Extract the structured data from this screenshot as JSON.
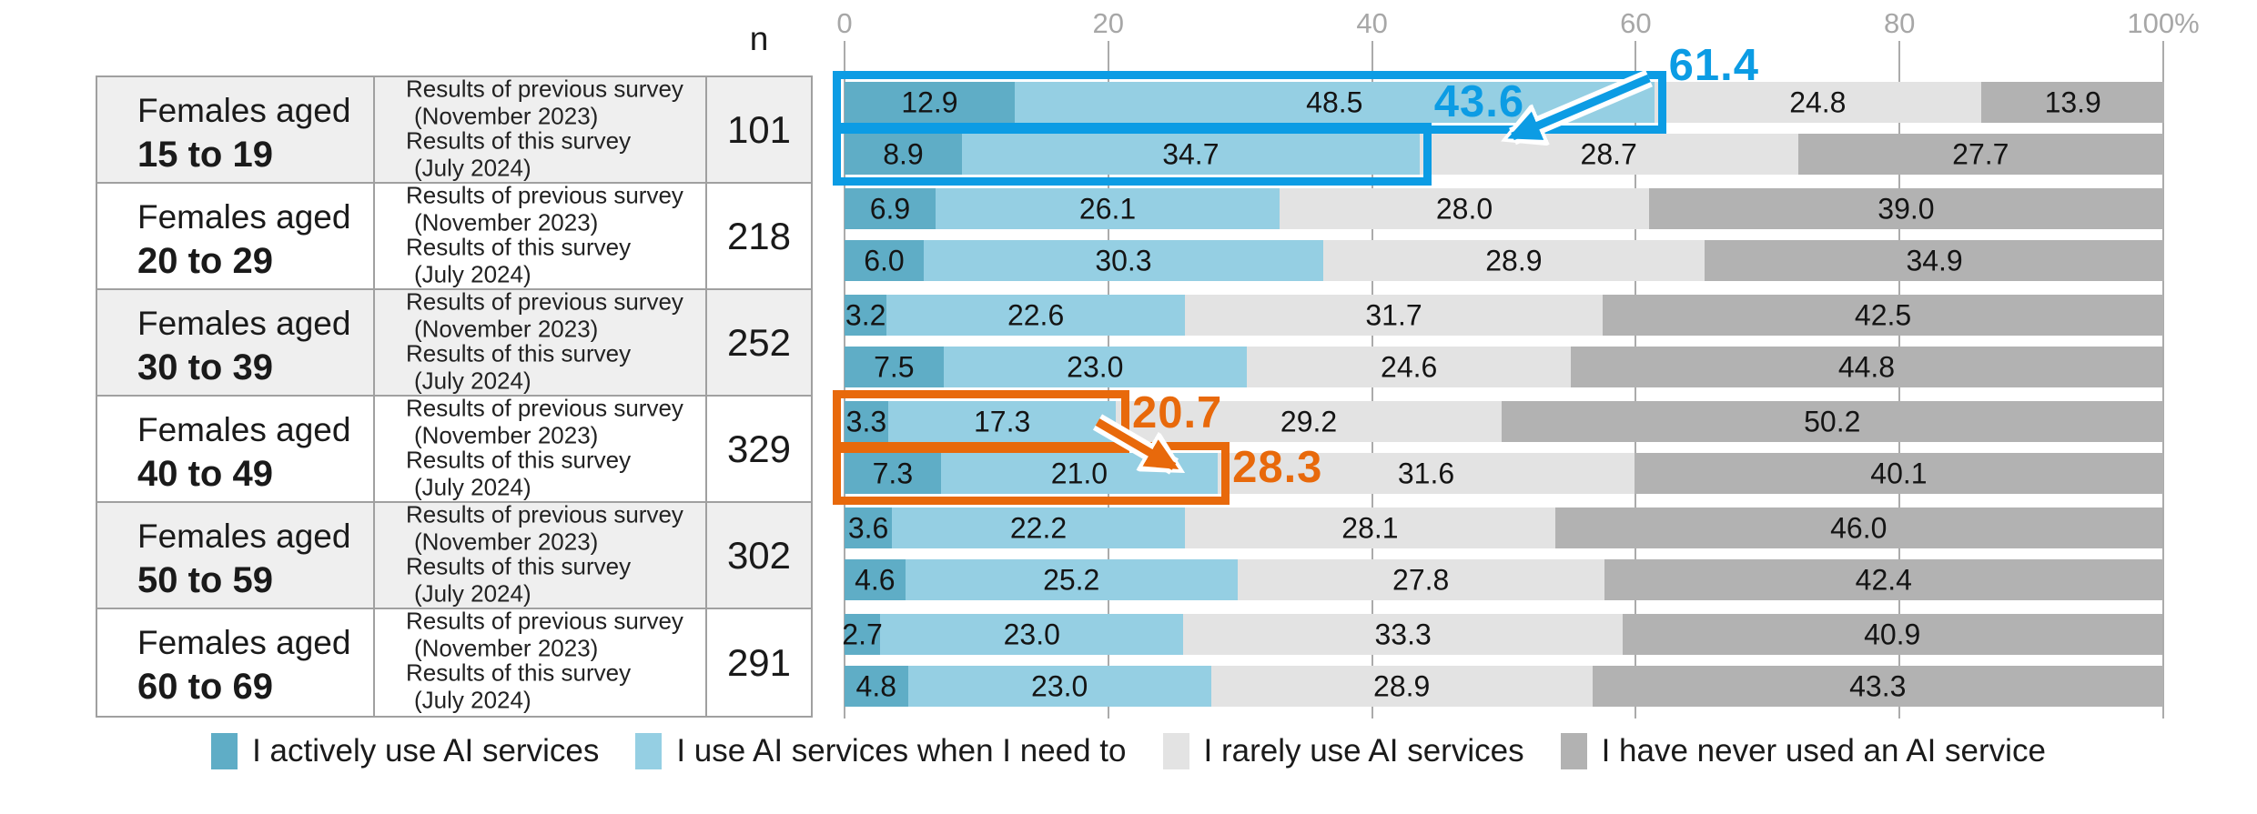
{
  "chart_data": {
    "type": "bar",
    "orientation": "horizontal-stacked",
    "unit": "%",
    "axis": {
      "n_header": "n",
      "ticks": [
        0,
        20,
        40,
        60,
        80,
        100
      ],
      "tick_labels": [
        "0",
        "20",
        "40",
        "60",
        "80",
        "100%"
      ],
      "xlim": [
        0,
        100
      ]
    },
    "legend": [
      {
        "label": "I actively use AI services",
        "color": "#5fadc6"
      },
      {
        "label": "I use AI services when I need to",
        "color": "#95cfe3"
      },
      {
        "label": "I rarely use AI services",
        "color": "#e3e3e3"
      },
      {
        "label": "I have never used an AI service",
        "color": "#b2b2b2"
      }
    ],
    "row_labels": {
      "previous_line1": "Results of previous survey",
      "previous_line2": "(November 2023)",
      "current_line1": "Results of this survey",
      "current_line2": "(July 2024)"
    },
    "groups": [
      {
        "label_line1": "Females aged",
        "label_line2": "15 to 19",
        "n": "101",
        "rows": [
          {
            "values": [
              12.9,
              48.5,
              24.8,
              13.9
            ]
          },
          {
            "values": [
              8.9,
              34.7,
              28.7,
              27.7
            ]
          }
        ]
      },
      {
        "label_line1": "Females aged",
        "label_line2": "20 to 29",
        "n": "218",
        "rows": [
          {
            "values": [
              6.9,
              26.1,
              28.0,
              39.0
            ]
          },
          {
            "values": [
              6.0,
              30.3,
              28.9,
              34.9
            ]
          }
        ]
      },
      {
        "label_line1": "Females aged",
        "label_line2": "30 to 39",
        "n": "252",
        "rows": [
          {
            "values": [
              3.2,
              22.6,
              31.7,
              42.5
            ]
          },
          {
            "values": [
              7.5,
              23.0,
              24.6,
              44.8
            ]
          }
        ]
      },
      {
        "label_line1": "Females aged",
        "label_line2": "40 to 49",
        "n": "329",
        "rows": [
          {
            "values": [
              3.3,
              17.3,
              29.2,
              50.2
            ]
          },
          {
            "values": [
              7.3,
              21.0,
              31.6,
              40.1
            ]
          }
        ]
      },
      {
        "label_line1": "Females aged",
        "label_line2": "50 to 59",
        "n": "302",
        "rows": [
          {
            "values": [
              3.6,
              22.2,
              28.1,
              46.0
            ]
          },
          {
            "values": [
              4.6,
              25.2,
              27.8,
              42.4
            ]
          }
        ]
      },
      {
        "label_line1": "Females aged",
        "label_line2": "60 to 69",
        "n": "291",
        "rows": [
          {
            "values": [
              2.7,
              23.0,
              33.3,
              40.9
            ]
          },
          {
            "values": [
              4.8,
              23.0,
              28.9,
              43.3
            ]
          }
        ]
      }
    ],
    "annotations": {
      "highlight_colors": {
        "blue": "#0c9ce4",
        "orange": "#e8690b"
      },
      "highlights": [
        {
          "row": 0,
          "extent": 61.4,
          "color": "blue"
        },
        {
          "row": 1,
          "extent": 43.6,
          "color": "blue"
        },
        {
          "row": 6,
          "extent": 20.7,
          "color": "orange"
        },
        {
          "row": 7,
          "extent": 28.3,
          "color": "orange"
        }
      ],
      "callouts": [
        {
          "text": "61.4",
          "color": "blue"
        },
        {
          "text": "43.6",
          "color": "blue"
        },
        {
          "text": "20.7",
          "color": "orange"
        },
        {
          "text": "28.3",
          "color": "orange"
        }
      ]
    }
  }
}
